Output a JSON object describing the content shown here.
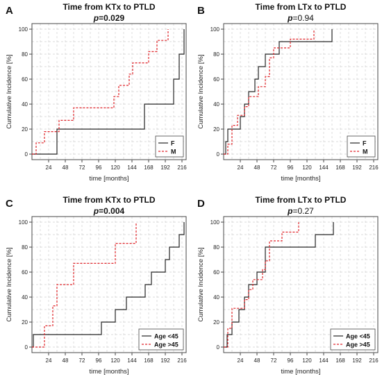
{
  "chart_data": [
    {
      "type": "line",
      "panel_label": "A",
      "title": "Time from KTx to PTLD",
      "p_prefix": "p",
      "p_value": "=0.029",
      "p_bold": true,
      "xlabel": "time [months]",
      "ylabel": "Cumulative Incidence [%]",
      "xlim": [
        0,
        222
      ],
      "ylim": [
        0,
        100
      ],
      "xticks": [
        24,
        48,
        72,
        96,
        120,
        144,
        168,
        192,
        216
      ],
      "yticks": [
        0,
        20,
        40,
        60,
        80,
        100
      ],
      "grid": true,
      "legend_position": "bottom-right",
      "series": [
        {
          "name": "F",
          "color": "#222222",
          "dash": "solid",
          "x": [
            0,
            36,
            36,
            162,
            162,
            204,
            204,
            212,
            212,
            219,
            219
          ],
          "y": [
            0,
            0,
            20,
            20,
            40,
            40,
            60,
            60,
            80,
            80,
            100
          ]
        },
        {
          "name": "M",
          "color": "#e0252a",
          "dash": "dashed",
          "x": [
            0,
            6,
            6,
            18,
            18,
            39,
            39,
            48,
            48,
            60,
            60,
            118,
            118,
            125,
            125,
            140,
            140,
            145,
            145,
            168,
            168,
            180,
            180,
            196,
            196
          ],
          "y": [
            0,
            0,
            9,
            9,
            18,
            18,
            27,
            27,
            27,
            27,
            37,
            37,
            46,
            46,
            55,
            55,
            64,
            64,
            73,
            73,
            82,
            82,
            91,
            91,
            100
          ]
        }
      ]
    },
    {
      "type": "line",
      "panel_label": "B",
      "title": "Time from LTx to PTLD",
      "p_prefix": "p",
      "p_value": "=0.94",
      "p_bold": false,
      "xlabel": "time [months]",
      "ylabel": "Cumulative Incidence [%]",
      "xlim": [
        0,
        222
      ],
      "ylim": [
        0,
        100
      ],
      "xticks": [
        24,
        48,
        72,
        96,
        120,
        144,
        168,
        192,
        216
      ],
      "yticks": [
        0,
        20,
        40,
        60,
        80,
        100
      ],
      "grid": true,
      "legend_position": "bottom-right",
      "series": [
        {
          "name": "F",
          "color": "#222222",
          "dash": "solid",
          "x": [
            0,
            3,
            3,
            6,
            6,
            24,
            24,
            30,
            30,
            36,
            36,
            45,
            45,
            50,
            50,
            60,
            60,
            80,
            80,
            96,
            96,
            156,
            156
          ],
          "y": [
            0,
            0,
            10,
            10,
            20,
            20,
            30,
            30,
            40,
            40,
            50,
            50,
            60,
            60,
            70,
            70,
            80,
            80,
            90,
            90,
            90,
            90,
            100
          ]
        },
        {
          "name": "M",
          "color": "#e0252a",
          "dash": "dashed",
          "x": [
            0,
            6,
            6,
            12,
            12,
            20,
            20,
            30,
            30,
            36,
            36,
            50,
            50,
            60,
            60,
            66,
            66,
            72,
            72,
            96,
            96,
            130,
            130
          ],
          "y": [
            0,
            0,
            8,
            8,
            23,
            23,
            31,
            31,
            38,
            38,
            46,
            46,
            54,
            54,
            62,
            62,
            77,
            77,
            85,
            85,
            92,
            92,
            100
          ]
        }
      ]
    },
    {
      "type": "line",
      "panel_label": "C",
      "title": "Time from KTx to PTLD",
      "p_prefix": "p",
      "p_value": "=0.004",
      "p_bold": true,
      "xlabel": "time [months]",
      "ylabel": "Cumulative Incidence [%]",
      "xlim": [
        0,
        222
      ],
      "ylim": [
        0,
        100
      ],
      "xticks": [
        24,
        48,
        72,
        96,
        120,
        144,
        168,
        192,
        216
      ],
      "yticks": [
        0,
        20,
        40,
        60,
        80,
        100
      ],
      "grid": true,
      "legend_position": "bottom-right",
      "series": [
        {
          "name": "Age <45",
          "color": "#222222",
          "dash": "solid",
          "x": [
            0,
            2,
            2,
            100,
            100,
            120,
            120,
            136,
            136,
            163,
            163,
            172,
            172,
            175,
            175,
            192,
            192,
            198,
            198,
            212,
            212,
            219,
            219
          ],
          "y": [
            0,
            0,
            10,
            10,
            20,
            20,
            30,
            30,
            40,
            40,
            50,
            50,
            60,
            60,
            60,
            60,
            70,
            70,
            80,
            80,
            90,
            90,
            100
          ]
        },
        {
          "name": "Age >45",
          "color": "#e0252a",
          "dash": "dashed",
          "x": [
            0,
            18,
            18,
            30,
            30,
            36,
            36,
            60,
            60,
            120,
            120,
            150,
            150
          ],
          "y": [
            0,
            0,
            17,
            17,
            33,
            33,
            50,
            50,
            67,
            67,
            83,
            83,
            100
          ]
        }
      ]
    },
    {
      "type": "line",
      "panel_label": "D",
      "title": "Time from LTx to PTLD",
      "p_prefix": "p",
      "p_value": "=0.27",
      "p_bold": false,
      "xlabel": "time [months]",
      "ylabel": "Cumulative Incidence [%]",
      "xlim": [
        0,
        222
      ],
      "ylim": [
        0,
        100
      ],
      "xticks": [
        24,
        48,
        72,
        96,
        120,
        144,
        168,
        192,
        216
      ],
      "yticks": [
        0,
        20,
        40,
        60,
        80,
        100
      ],
      "grid": true,
      "legend_position": "bottom-right",
      "series": [
        {
          "name": "Age <45",
          "color": "#222222",
          "dash": "solid",
          "x": [
            0,
            5,
            5,
            12,
            12,
            22,
            22,
            30,
            30,
            36,
            36,
            48,
            48,
            60,
            60,
            66,
            66,
            132,
            132,
            158,
            158
          ],
          "y": [
            0,
            0,
            10,
            10,
            20,
            20,
            30,
            30,
            40,
            40,
            50,
            50,
            60,
            60,
            80,
            80,
            80,
            80,
            90,
            90,
            100
          ]
        },
        {
          "name": "Age >45",
          "color": "#e0252a",
          "dash": "dashed",
          "x": [
            0,
            6,
            6,
            12,
            12,
            30,
            30,
            36,
            36,
            42,
            42,
            56,
            56,
            60,
            60,
            66,
            66,
            84,
            84,
            96,
            96,
            108,
            108
          ],
          "y": [
            0,
            0,
            15,
            15,
            31,
            31,
            38,
            38,
            46,
            46,
            54,
            54,
            62,
            62,
            69,
            69,
            85,
            85,
            92,
            92,
            92,
            92,
            100
          ]
        }
      ]
    }
  ]
}
